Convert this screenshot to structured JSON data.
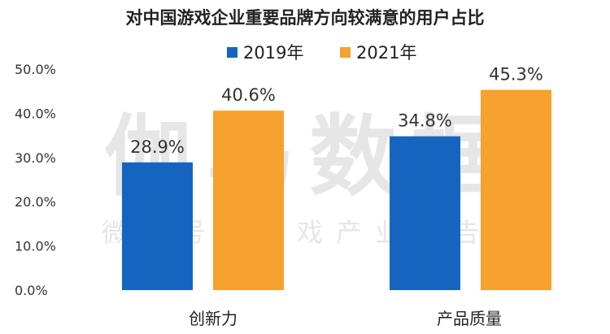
{
  "chart_data": {
    "type": "bar",
    "title": "对中国游戏企业重要品牌方向较满意的用户占比",
    "categories": [
      "创新力",
      "产品质量"
    ],
    "series": [
      {
        "name": "2019年",
        "values": [
          28.9,
          34.8
        ],
        "color": "#1565c0",
        "labels": [
          "28.9%",
          "34.8%"
        ]
      },
      {
        "name": "2021年",
        "values": [
          40.6,
          45.3
        ],
        "color": "#f7a12e",
        "labels": [
          "40.6%",
          "45.3%"
        ]
      }
    ],
    "ylim": [
      0,
      50
    ],
    "yticks": [
      "0.0%",
      "10.0%",
      "20.0%",
      "30.0%",
      "40.0%",
      "50.0%"
    ],
    "ytick_values": [
      0,
      10,
      20,
      30,
      40,
      50
    ],
    "legend_position": "top-center",
    "grid": false
  },
  "watermark": {
    "main": "伽马数据",
    "sub": "微信号：游戏产业报告"
  }
}
